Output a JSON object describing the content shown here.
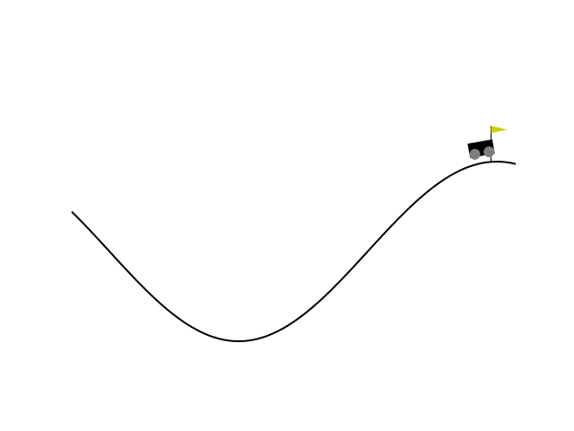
{
  "colors": {
    "background": "#ffffff",
    "track": "#000000",
    "car_body": "#000000",
    "wheel": "#7f7f7f",
    "flag_pole": "#000000",
    "flag": "#cccc00"
  },
  "env": {
    "min_position": -1.2,
    "max_position": 0.6,
    "goal_position": 0.5,
    "car_position": 0.47,
    "track_function": "sin3x"
  }
}
